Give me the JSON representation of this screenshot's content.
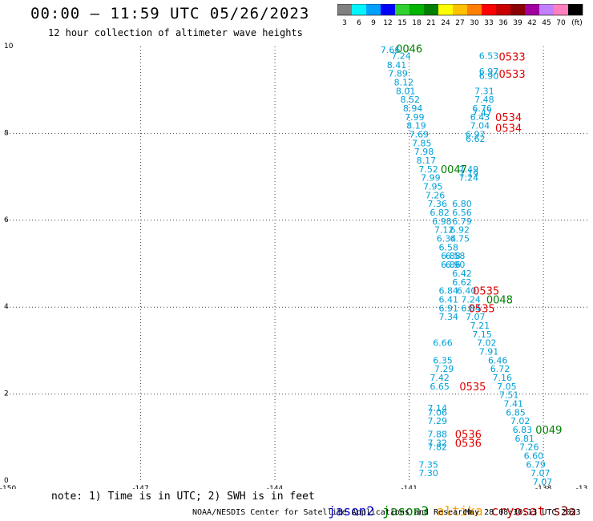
{
  "header": {
    "title": "00:00 – 11:59 UTC 05/26/2023",
    "subtitle": "12 hour collection of altimeter wave heights"
  },
  "colorbar": {
    "colors": [
      "#808080",
      "#00f5ff",
      "#00a0ff",
      "#0000ff",
      "#30d030",
      "#00b400",
      "#008000",
      "#ffff00",
      "#ffc000",
      "#ff8000",
      "#ff0000",
      "#c80000",
      "#8b0000",
      "#a000a0",
      "#c080ff",
      "#ff80c0",
      "#000000"
    ],
    "labels": [
      "3",
      "6",
      "9",
      "12",
      "15",
      "18",
      "21",
      "24",
      "27",
      "30",
      "33",
      "36",
      "39",
      "42",
      "45",
      "70",
      "(ft)"
    ]
  },
  "legend": {
    "satellites": [
      {
        "name": "jason2",
        "color": "#0000cc"
      },
      {
        "name": "jason3",
        "color": "#008000"
      },
      {
        "name": "altika",
        "color": "#ffa000"
      },
      {
        "name": "cryosat",
        "color": "#cc0000"
      },
      {
        "name": "s3a",
        "color": "#800000"
      }
    ]
  },
  "footer": {
    "note": "note: 1) Time is in UTC; 2) SWH is in feet",
    "credit": "NOAA/NESDIS Center for Satellite Applications and Research",
    "timestamp": "May 28 08:30:13 UTC 2023"
  },
  "chart_data": {
    "type": "scatter",
    "xlim": [
      -150,
      -137
    ],
    "ylim": [
      0,
      10
    ],
    "x_ticks": [
      "-150",
      "-147",
      "-144",
      "-141",
      "-138",
      "-13"
    ],
    "y_ticks": [
      "0",
      "2",
      "4",
      "6",
      "8",
      "10"
    ],
    "grid": true,
    "value_color": "#00a0d8",
    "track_colors": {
      "cryosat": "#e00000",
      "jason3": "#008000"
    },
    "points": [
      {
        "x": -141.42,
        "y": 9.93,
        "v": "7.66"
      },
      {
        "x": -141.18,
        "y": 9.79,
        "v": "7.24"
      },
      {
        "x": -141.28,
        "y": 9.58,
        "v": "8.41"
      },
      {
        "x": -141.25,
        "y": 9.38,
        "v": "7.89"
      },
      {
        "x": -141.12,
        "y": 9.18,
        "v": "8.12"
      },
      {
        "x": -141.08,
        "y": 8.98,
        "v": "8.01"
      },
      {
        "x": -140.98,
        "y": 8.78,
        "v": "8.52"
      },
      {
        "x": -140.92,
        "y": 8.58,
        "v": "8.94"
      },
      {
        "x": -140.88,
        "y": 8.38,
        "v": "7.99"
      },
      {
        "x": -140.84,
        "y": 8.18,
        "v": "8.19"
      },
      {
        "x": -140.78,
        "y": 7.98,
        "v": "7.69"
      },
      {
        "x": -140.72,
        "y": 7.78,
        "v": "7.85"
      },
      {
        "x": -140.67,
        "y": 7.58,
        "v": "7.98"
      },
      {
        "x": -140.62,
        "y": 7.38,
        "v": "8.17"
      },
      {
        "x": -140.57,
        "y": 7.18,
        "v": "7.52"
      },
      {
        "x": -140.52,
        "y": 6.98,
        "v": "7.99"
      },
      {
        "x": -140.47,
        "y": 6.78,
        "v": "7.95"
      },
      {
        "x": -140.42,
        "y": 6.58,
        "v": "7.26"
      },
      {
        "x": -140.37,
        "y": 6.38,
        "v": "7.36"
      },
      {
        "x": -140.32,
        "y": 6.18,
        "v": "6.82"
      },
      {
        "x": -140.27,
        "y": 5.98,
        "v": "6.98"
      },
      {
        "x": -140.22,
        "y": 5.78,
        "v": "7.12"
      },
      {
        "x": -140.17,
        "y": 5.58,
        "v": "6.34"
      },
      {
        "x": -140.12,
        "y": 5.38,
        "v": "6.58"
      },
      {
        "x": -140.07,
        "y": 5.18,
        "v": "6.88"
      },
      {
        "x": -140.07,
        "y": 4.98,
        "v": "6.86"
      },
      {
        "x": -140.12,
        "y": 4.38,
        "v": "6.84"
      },
      {
        "x": -140.12,
        "y": 4.18,
        "v": "6.41"
      },
      {
        "x": -140.12,
        "y": 3.98,
        "v": "6.91"
      },
      {
        "x": -140.12,
        "y": 3.78,
        "v": "7.34"
      },
      {
        "x": -140.25,
        "y": 3.18,
        "v": "6.66"
      },
      {
        "x": -140.25,
        "y": 2.78,
        "v": "6.35"
      },
      {
        "x": -140.22,
        "y": 2.58,
        "v": "7.29"
      },
      {
        "x": -140.32,
        "y": 2.38,
        "v": "7.42"
      },
      {
        "x": -140.32,
        "y": 2.18,
        "v": "6.65"
      },
      {
        "x": -140.37,
        "y": 1.68,
        "v": "7.14"
      },
      {
        "x": -140.37,
        "y": 1.58,
        "v": "7.06"
      },
      {
        "x": -140.37,
        "y": 1.38,
        "v": "7.29"
      },
      {
        "x": -140.37,
        "y": 1.08,
        "v": "7.88"
      },
      {
        "x": -140.37,
        "y": 0.88,
        "v": "7.32"
      },
      {
        "x": -140.37,
        "y": 0.78,
        "v": "7.82"
      },
      {
        "x": -140.57,
        "y": 0.38,
        "v": "7.35"
      },
      {
        "x": -140.57,
        "y": 0.18,
        "v": "7.30"
      },
      {
        "x": -139.22,
        "y": 9.79,
        "v": "6.53"
      },
      {
        "x": -139.22,
        "y": 9.43,
        "v": "6.97"
      },
      {
        "x": -139.22,
        "y": 9.33,
        "v": "6.90"
      },
      {
        "x": -139.32,
        "y": 8.98,
        "v": "7.31"
      },
      {
        "x": -139.32,
        "y": 8.78,
        "v": "7.48"
      },
      {
        "x": -139.37,
        "y": 8.58,
        "v": "6.76"
      },
      {
        "x": -139.37,
        "y": 8.48,
        "v": "7.47"
      },
      {
        "x": -139.42,
        "y": 8.38,
        "v": "6.43"
      },
      {
        "x": -139.42,
        "y": 8.18,
        "v": "7.04"
      },
      {
        "x": -139.52,
        "y": 7.98,
        "v": "6.97"
      },
      {
        "x": -139.52,
        "y": 7.88,
        "v": "6.62"
      },
      {
        "x": -139.67,
        "y": 7.18,
        "v": "7.49"
      },
      {
        "x": -139.67,
        "y": 7.08,
        "v": "7.19"
      },
      {
        "x": -139.67,
        "y": 6.98,
        "v": "7.24"
      },
      {
        "x": -139.82,
        "y": 6.38,
        "v": "6.80"
      },
      {
        "x": -139.82,
        "y": 6.18,
        "v": "6.56"
      },
      {
        "x": -139.82,
        "y": 5.98,
        "v": "6.79"
      },
      {
        "x": -139.87,
        "y": 5.78,
        "v": "6.92"
      },
      {
        "x": -139.87,
        "y": 5.58,
        "v": "6.75"
      },
      {
        "x": -139.97,
        "y": 5.18,
        "v": "6.58"
      },
      {
        "x": -139.97,
        "y": 4.98,
        "v": "6.90"
      },
      {
        "x": -139.82,
        "y": 4.78,
        "v": "6.42"
      },
      {
        "x": -139.82,
        "y": 4.58,
        "v": "6.62"
      },
      {
        "x": -139.72,
        "y": 4.38,
        "v": "6.40"
      },
      {
        "x": -139.62,
        "y": 4.18,
        "v": "7.24"
      },
      {
        "x": -139.62,
        "y": 3.98,
        "v": "6.84"
      },
      {
        "x": -139.52,
        "y": 3.78,
        "v": "7.07"
      },
      {
        "x": -139.42,
        "y": 3.58,
        "v": "7.21"
      },
      {
        "x": -139.37,
        "y": 3.38,
        "v": "7.15"
      },
      {
        "x": -139.27,
        "y": 3.18,
        "v": "7.02"
      },
      {
        "x": -139.22,
        "y": 2.98,
        "v": "7.91"
      },
      {
        "x": -139.02,
        "y": 2.78,
        "v": "6.46"
      },
      {
        "x": -138.97,
        "y": 2.58,
        "v": "6.72"
      },
      {
        "x": -138.92,
        "y": 2.38,
        "v": "7.16"
      },
      {
        "x": -138.82,
        "y": 2.18,
        "v": "7.05"
      },
      {
        "x": -138.77,
        "y": 1.98,
        "v": "7.51"
      },
      {
        "x": -138.67,
        "y": 1.78,
        "v": "7.41"
      },
      {
        "x": -138.62,
        "y": 1.58,
        "v": "6.85"
      },
      {
        "x": -138.52,
        "y": 1.38,
        "v": "7.02"
      },
      {
        "x": -138.47,
        "y": 1.18,
        "v": "6.83"
      },
      {
        "x": -138.42,
        "y": 0.98,
        "v": "6.81"
      },
      {
        "x": -138.32,
        "y": 0.78,
        "v": "7.26"
      },
      {
        "x": -138.22,
        "y": 0.58,
        "v": "6.60"
      },
      {
        "x": -138.17,
        "y": 0.38,
        "v": "6.79"
      },
      {
        "x": -138.07,
        "y": 0.18,
        "v": "7.07"
      },
      {
        "x": -138.02,
        "y": -0.02,
        "v": "7.07"
      }
    ],
    "track_labels": [
      {
        "x": -141.0,
        "y": 9.95,
        "text": "0046",
        "sat": "jason3"
      },
      {
        "x": -138.7,
        "y": 9.77,
        "text": "0533",
        "sat": "cryosat"
      },
      {
        "x": -138.7,
        "y": 9.37,
        "text": "0533",
        "sat": "cryosat"
      },
      {
        "x": -138.78,
        "y": 8.38,
        "text": "0534",
        "sat": "cryosat"
      },
      {
        "x": -138.78,
        "y": 8.13,
        "text": "0534",
        "sat": "cryosat"
      },
      {
        "x": -140.0,
        "y": 7.18,
        "text": "0047",
        "sat": "jason3"
      },
      {
        "x": -139.28,
        "y": 4.38,
        "text": "0535",
        "sat": "cryosat"
      },
      {
        "x": -138.98,
        "y": 4.18,
        "text": "0048",
        "sat": "jason3"
      },
      {
        "x": -139.38,
        "y": 3.98,
        "text": "0535",
        "sat": "cryosat"
      },
      {
        "x": -139.58,
        "y": 2.18,
        "text": "0535",
        "sat": "cryosat"
      },
      {
        "x": -137.88,
        "y": 1.18,
        "text": "0049",
        "sat": "jason3"
      },
      {
        "x": -139.68,
        "y": 1.08,
        "text": "0536",
        "sat": "cryosat"
      },
      {
        "x": -139.68,
        "y": 0.88,
        "text": "0536",
        "sat": "cryosat"
      }
    ]
  }
}
